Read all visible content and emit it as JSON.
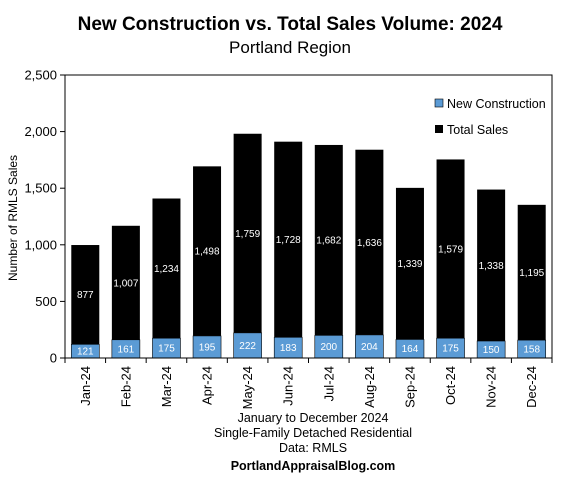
{
  "chart_data": {
    "type": "bar",
    "stacked": true,
    "title": "New Construction vs. Total Sales Volume: 2024",
    "subtitle": "Portland Region",
    "ylabel": "Number of RMLS Sales",
    "ylim": [
      0,
      2500
    ],
    "yticks": [
      "0",
      "500",
      "1,000",
      "1,500",
      "2,000",
      "2,500"
    ],
    "ytick_values": [
      0,
      500,
      1000,
      1500,
      2000,
      2500
    ],
    "categories": [
      "Jan-24",
      "Feb-24",
      "Mar-24",
      "Apr-24",
      "May-24",
      "Jun-24",
      "Jul-24",
      "Aug-24",
      "Sep-24",
      "Oct-24",
      "Nov-24",
      "Dec-24"
    ],
    "series": [
      {
        "name": "New Construction",
        "color": "#5b9bd5",
        "values": [
          121,
          161,
          175,
          195,
          222,
          183,
          200,
          204,
          164,
          175,
          150,
          158
        ],
        "labels": [
          "121",
          "161",
          "175",
          "195",
          "222",
          "183",
          "200",
          "204",
          "164",
          "175",
          "150",
          "158"
        ]
      },
      {
        "name": "Total Sales",
        "color": "#000000",
        "values": [
          877,
          1007,
          1234,
          1498,
          1759,
          1728,
          1682,
          1636,
          1339,
          1579,
          1338,
          1195
        ],
        "labels": [
          "877",
          "1,007",
          "1,234",
          "1,498",
          "1,759",
          "1,728",
          "1,682",
          "1,636",
          "1,339",
          "1,579",
          "1,338",
          "1,195"
        ]
      }
    ],
    "legend_position": "top-right",
    "grid": false
  },
  "footer": {
    "line1": "January to December 2024",
    "line2": "Single-Family Detached Residential",
    "line3": "Data: RMLS",
    "line4": "PortlandAppraisalBlog.com"
  }
}
